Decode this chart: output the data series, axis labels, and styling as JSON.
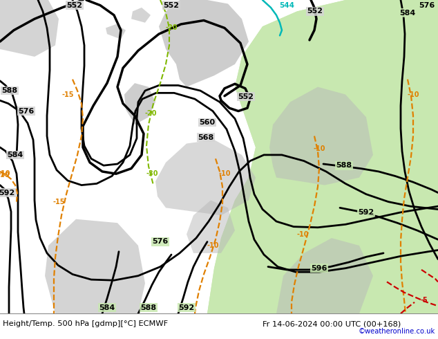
{
  "title_left": "Height/Temp. 500 hPa [gdmp][°C] ECMWF",
  "title_right": "Fr 14-06-2024 00:00 UTC (00+168)",
  "credit": "©weatheronline.co.uk",
  "sea_color": "#d4d4d4",
  "land_green": "#c8e8b0",
  "land_gray": "#b8b8b8",
  "footer_bg": "#ffffff",
  "black": "#000000",
  "orange": "#e08000",
  "green_isotherm": "#80b800",
  "cyan_isotherm": "#00b8b8",
  "red_isotherm": "#cc0000"
}
